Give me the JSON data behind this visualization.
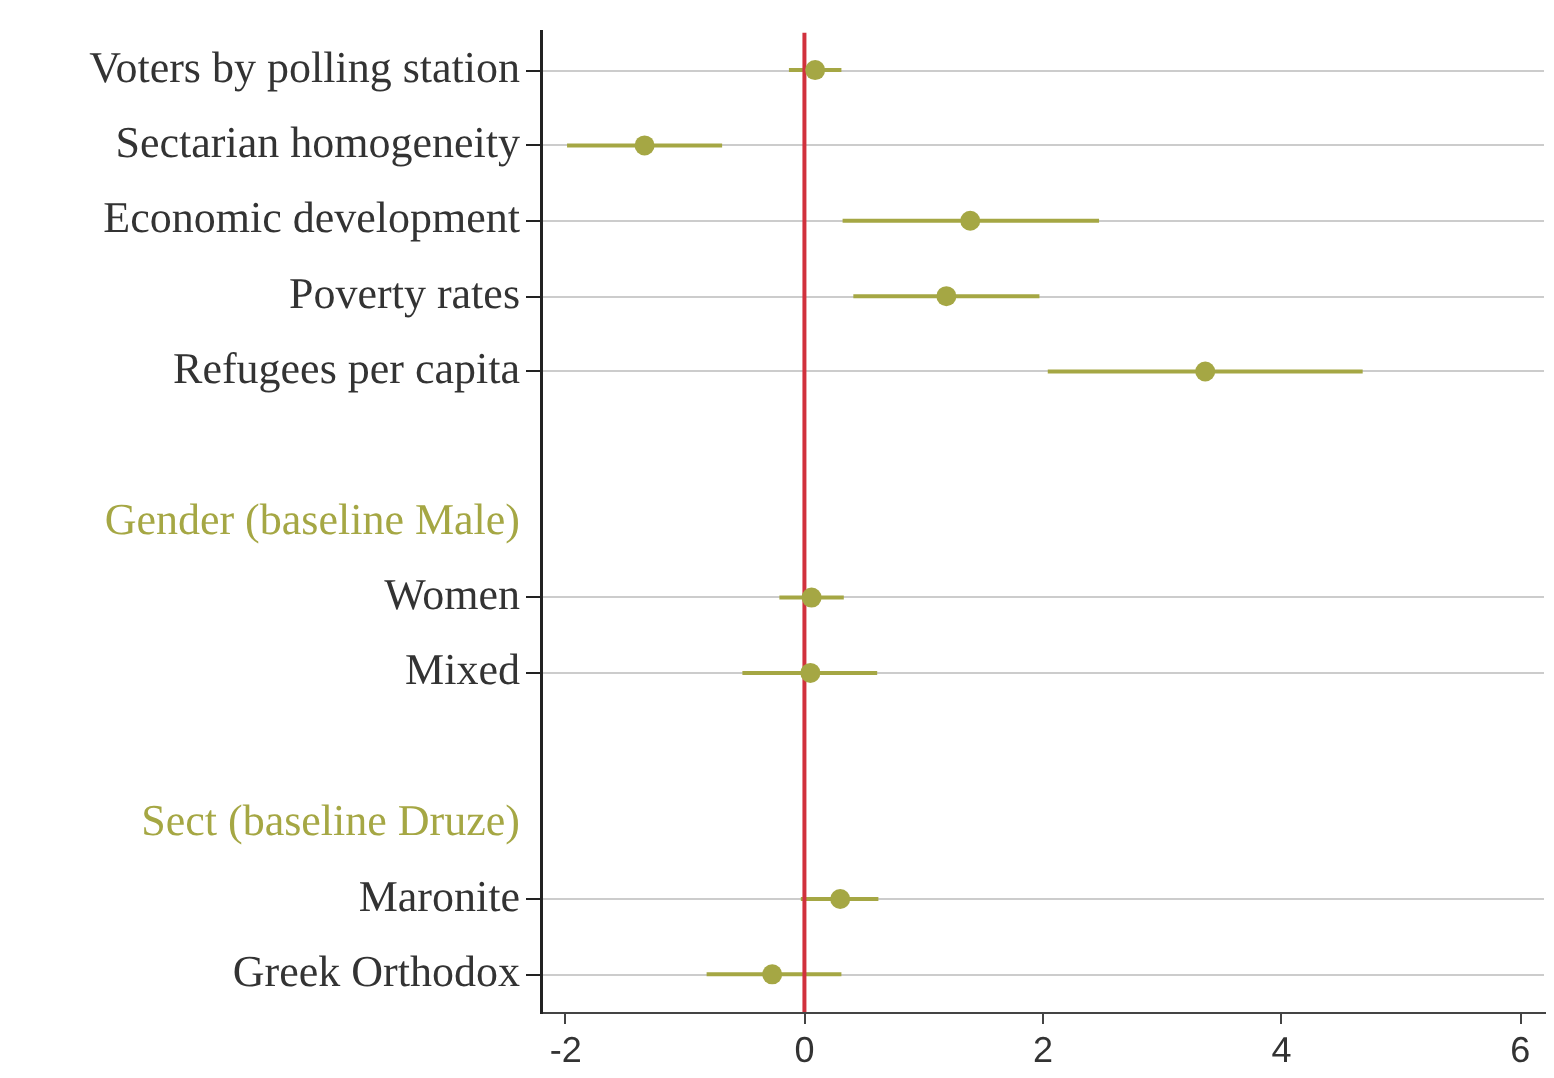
{
  "chart_data": {
    "type": "scatter",
    "orientation": "horizontal",
    "categories": [
      "Voters by polling station",
      "Sectarian homogeneity",
      "Economic development",
      "Poverty rates",
      "Refugees per capita",
      null,
      "Gender (baseline Male)",
      "Women",
      "Mixed",
      null,
      "Sect (baseline Druze)",
      "Maronite",
      "Greek Orthodox"
    ],
    "series": [
      {
        "color": "#a5a744",
        "values": [
          0.09,
          -1.34,
          1.39,
          1.19,
          3.36,
          null,
          null,
          0.06,
          0.05,
          null,
          null,
          0.3,
          -0.27
        ],
        "errors": [
          [
            -0.13,
            0.31
          ],
          [
            -1.99,
            -0.69
          ],
          [
            0.32,
            2.47
          ],
          [
            0.41,
            1.97
          ],
          [
            2.04,
            4.68
          ],
          null,
          null,
          [
            -0.21,
            0.33
          ],
          [
            -0.52,
            0.61
          ],
          null,
          null,
          [
            -0.03,
            0.62
          ],
          [
            -0.82,
            0.31
          ]
        ]
      }
    ],
    "xlim": [
      -2.2,
      6.2
    ],
    "xticks": [
      -2,
      0,
      2,
      4,
      6
    ],
    "ref_lines": [
      {
        "axis": "x",
        "value": 0,
        "color": "#d1313d"
      }
    ],
    "marker": "circle",
    "grid": "y",
    "legend": false
  }
}
